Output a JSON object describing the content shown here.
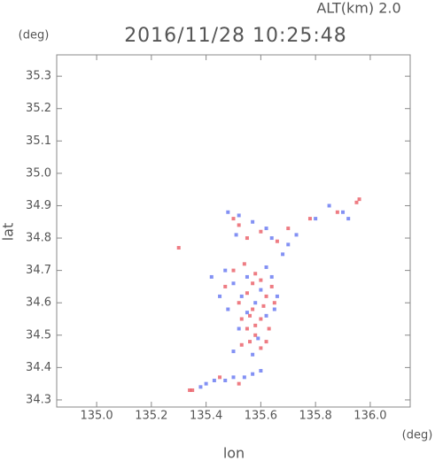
{
  "chart_data": {
    "type": "scatter",
    "title": "2016/11/28 10:25:48",
    "subtitle": "ALT(km) 2.0",
    "x_label": "lon",
    "y_label": "lat",
    "x_unit": "(deg)",
    "y_unit": "(deg)",
    "xlim": [
      134.854,
      136.146
    ],
    "ylim": [
      34.278,
      35.366
    ],
    "xticks": [
      {
        "value": 135,
        "label": "135.0"
      },
      135.2,
      135.4,
      135.6,
      135.8,
      {
        "value": 136,
        "label": "136.0"
      }
    ],
    "yticks": [
      34.3,
      34.4,
      34.5,
      34.6,
      34.7,
      34.8,
      34.9,
      {
        "value": 35,
        "label": "35.0"
      },
      35.1,
      35.2,
      35.3
    ],
    "series": [
      {
        "color": "#e8505a",
        "x": [
          135.3,
          135.34,
          135.35,
          135.95,
          135.96,
          135.58,
          135.6,
          135.55,
          135.52,
          135.57,
          135.6,
          135.55,
          135.58,
          135.62,
          135.6,
          135.53,
          135.56,
          135.62,
          135.5,
          135.54,
          135.47,
          135.65,
          135.58,
          135.63,
          135.52,
          135.55,
          135.6,
          135.66,
          135.7,
          135.78,
          135.88,
          135.5,
          135.57,
          135.61,
          135.53,
          135.56,
          135.64,
          135.45,
          135.52
        ],
        "y": [
          34.77,
          34.33,
          34.33,
          34.91,
          34.92,
          34.69,
          34.67,
          34.63,
          34.6,
          34.58,
          34.55,
          34.52,
          34.5,
          34.48,
          34.46,
          34.47,
          34.56,
          34.62,
          34.7,
          34.72,
          34.65,
          34.6,
          34.53,
          34.52,
          34.84,
          34.8,
          34.82,
          34.79,
          34.83,
          34.86,
          34.88,
          34.86,
          34.66,
          34.59,
          34.55,
          34.48,
          34.65,
          34.37,
          34.35
        ]
      },
      {
        "color": "#5a6cf0",
        "x": [
          135.48,
          135.52,
          135.57,
          135.62,
          135.7,
          135.73,
          135.8,
          135.85,
          135.9,
          135.92,
          135.42,
          135.45,
          135.48,
          135.5,
          135.53,
          135.6,
          135.64,
          135.66,
          135.62,
          135.58,
          135.55,
          135.52,
          135.5,
          135.57,
          135.65,
          135.4,
          135.43,
          135.47,
          135.5,
          135.54,
          135.57,
          135.6,
          135.38,
          135.68,
          135.64,
          135.51,
          135.55,
          135.59,
          135.47,
          135.62
        ],
        "y": [
          34.88,
          34.87,
          34.85,
          34.83,
          34.78,
          34.81,
          34.86,
          34.9,
          34.88,
          34.86,
          34.68,
          34.62,
          34.58,
          34.66,
          34.62,
          34.64,
          34.68,
          34.62,
          34.56,
          34.6,
          34.68,
          34.52,
          34.45,
          34.44,
          34.58,
          34.35,
          34.36,
          34.36,
          34.37,
          34.37,
          34.38,
          34.39,
          34.34,
          34.75,
          34.8,
          34.81,
          34.57,
          34.49,
          34.7,
          34.71
        ]
      }
    ]
  }
}
